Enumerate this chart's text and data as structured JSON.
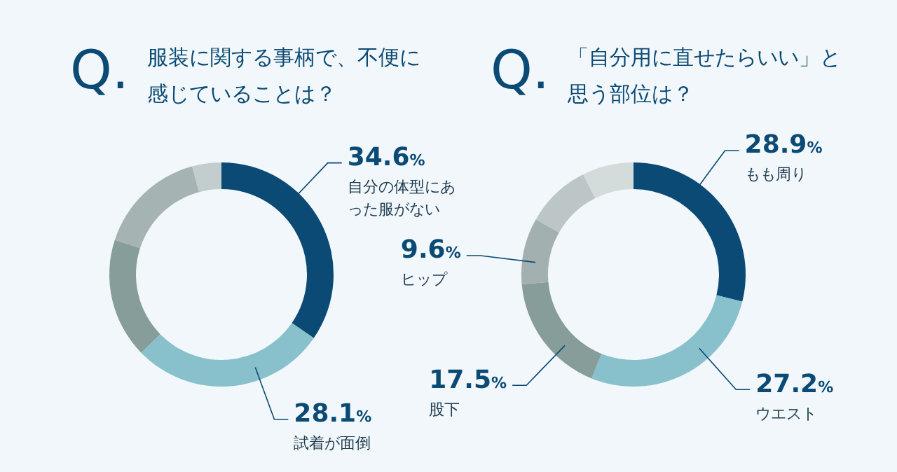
{
  "chart_data": [
    {
      "type": "donut",
      "title": "服装に関する事柄で、不便に感じていることは？",
      "annotations": [
        "Q."
      ],
      "categories": [
        "自分の体型にあった服がない",
        "試着が面倒",
        null,
        null,
        null
      ],
      "values": [
        34.6,
        28.1,
        17.3,
        15.8,
        4.2
      ],
      "value_labels": [
        "34.6%",
        "28.1%",
        null,
        null,
        null
      ],
      "colors": [
        "#0b4a74",
        "#88c1cb",
        "#879d99",
        "#a5b3b2",
        "#c3cdcd"
      ]
    },
    {
      "type": "donut",
      "title": "「自分用に直せたらいい」と思う部位は？",
      "annotations": [
        "Q."
      ],
      "categories": [
        "もも周り",
        "ウエスト",
        "股下",
        "ヒップ",
        null,
        null
      ],
      "values": [
        28.9,
        27.2,
        17.5,
        9.6,
        9.4,
        7.4
      ],
      "value_labels": [
        "28.9%",
        "27.2%",
        "17.5%",
        "9.6%",
        null,
        null
      ],
      "colors": [
        "#0b4a74",
        "#88c1cb",
        "#879d99",
        "#a2b1b0",
        "#bcc6c6",
        "#d3dbdb"
      ]
    }
  ]
}
